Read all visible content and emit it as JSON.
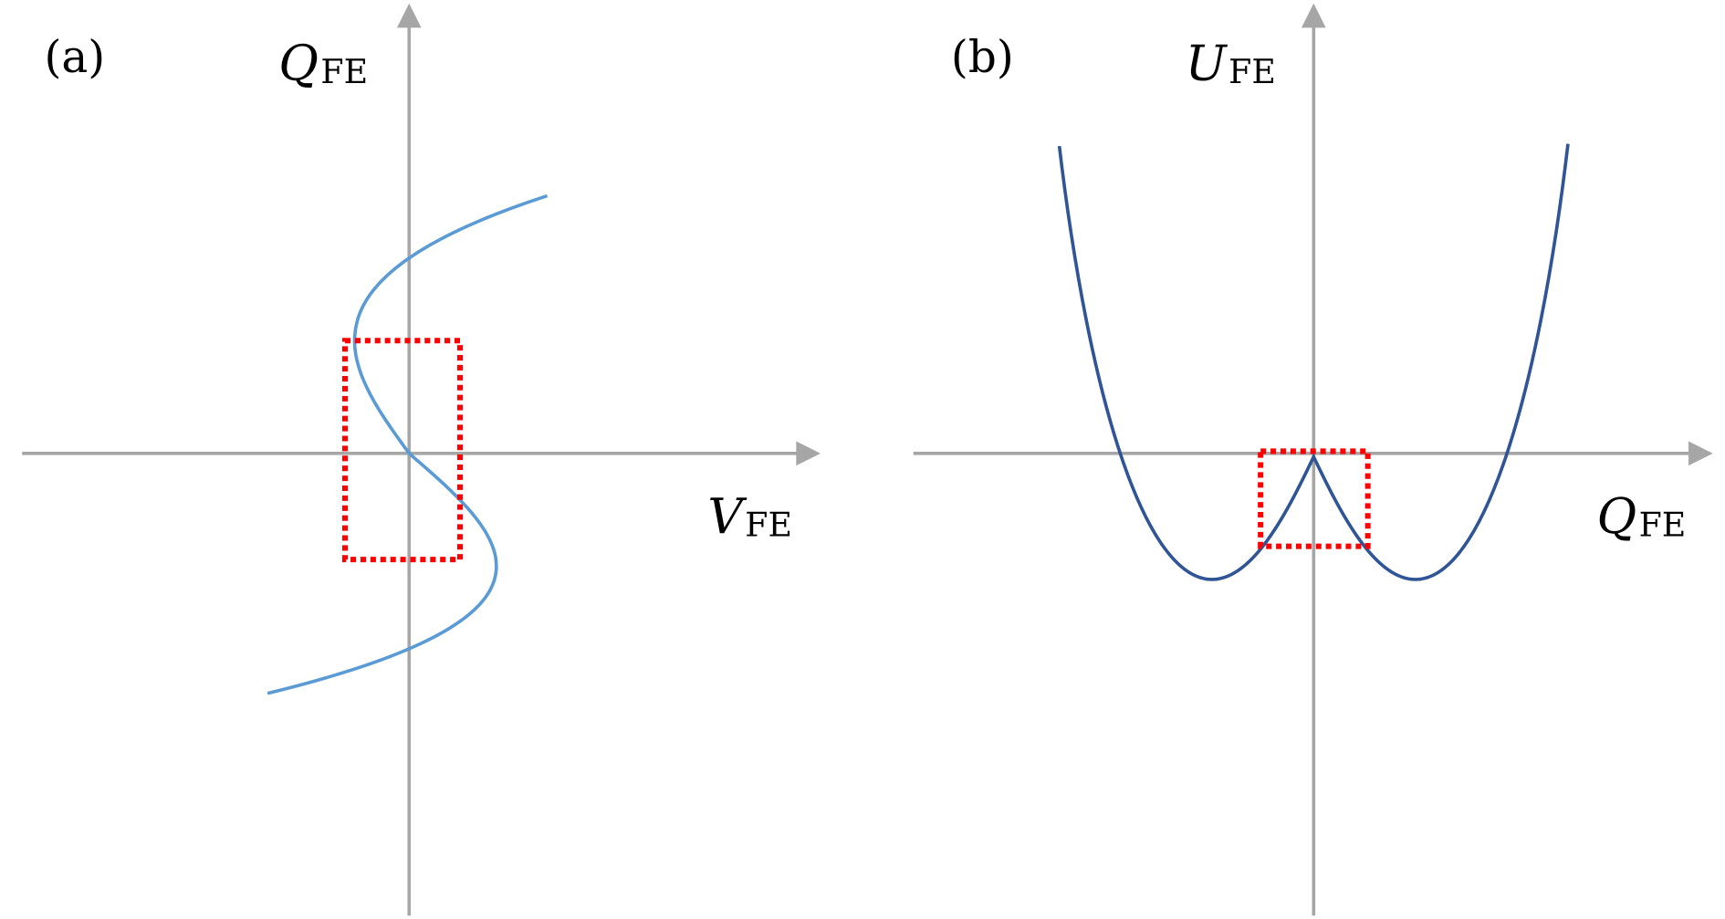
{
  "panels": [
    {
      "label": "(a)",
      "y_axis_label": {
        "symbol": "Q",
        "subscript": "FE"
      },
      "x_axis_label": {
        "symbol": "V",
        "subscript": "FE"
      }
    },
    {
      "label": "(b)",
      "y_axis_label": {
        "symbol": "U",
        "subscript": "FE"
      },
      "x_axis_label": {
        "symbol": "Q",
        "subscript": "FE"
      }
    }
  ]
}
